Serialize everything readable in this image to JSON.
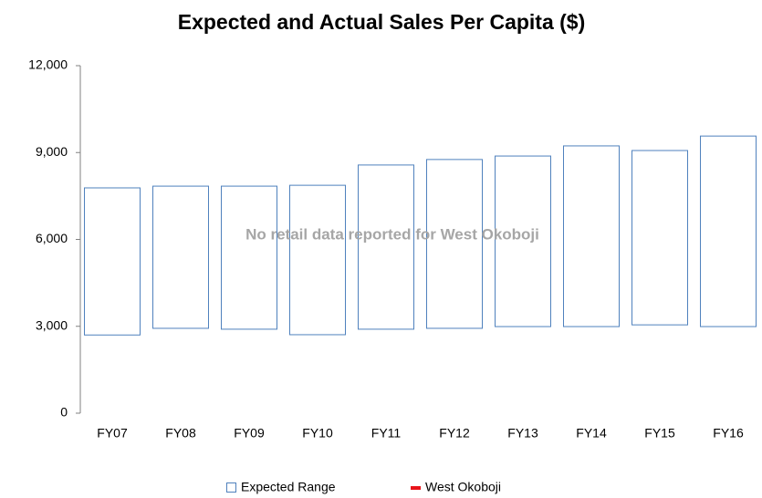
{
  "chart_data": {
    "type": "range_bar",
    "title": "Expected and Actual Sales Per Capita ($)",
    "annotation": "No retail data reported for West Okoboji",
    "categories": [
      "FY07",
      "FY08",
      "FY09",
      "FY10",
      "FY11",
      "FY12",
      "FY13",
      "FY14",
      "FY15",
      "FY16"
    ],
    "series": [
      {
        "name": "Expected Range",
        "color": "#4f81bd",
        "low": [
          2700,
          2930,
          2900,
          2710,
          2900,
          2930,
          2990,
          2990,
          3050,
          2990
        ],
        "high": [
          7780,
          7840,
          7840,
          7870,
          8570,
          8760,
          8880,
          9230,
          9070,
          9570
        ]
      },
      {
        "name": "West Okoboji",
        "color": "#e8141a",
        "values": [
          null,
          null,
          null,
          null,
          null,
          null,
          null,
          null,
          null,
          null
        ]
      }
    ],
    "ylim": [
      0,
      12000
    ],
    "yticks": [
      0,
      {
        "value": 3000,
        "label": "3,000"
      },
      {
        "value": 6000,
        "label": "6,000"
      },
      {
        "value": 9000,
        "label": "9,000"
      },
      {
        "value": 12000,
        "label": "12,000"
      }
    ],
    "grid": false,
    "legend": "bottom"
  }
}
